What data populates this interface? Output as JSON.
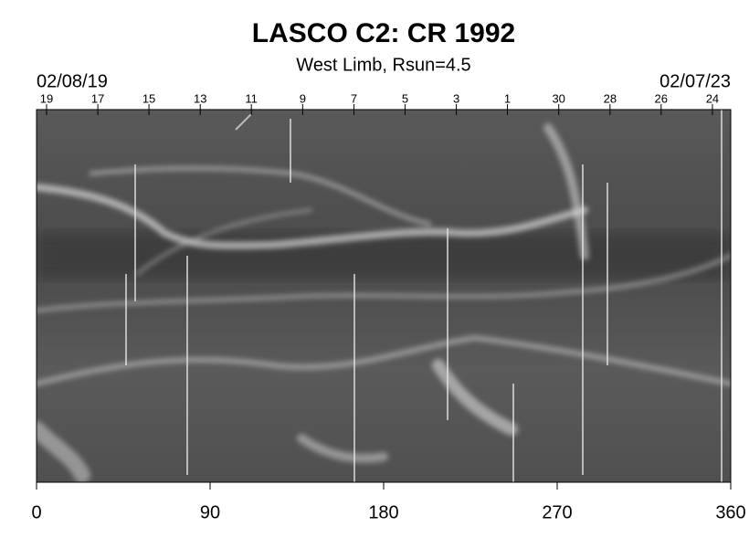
{
  "chart_data": {
    "type": "synoptic-map",
    "title": "LASCO C2: CR 1992",
    "subtitle": "West Limb, Rsun=4.5",
    "start_date": "02/08/19",
    "end_date": "02/07/23",
    "xlim": [
      0,
      360
    ],
    "xticks": [
      0,
      90,
      180,
      270,
      360
    ],
    "top_ticks": [
      {
        "value": 5.2,
        "label": "19"
      },
      {
        "value": 31.8,
        "label": "17"
      },
      {
        "value": 58.3,
        "label": "15"
      },
      {
        "value": 84.9,
        "label": "13"
      },
      {
        "value": 111.4,
        "label": "11"
      },
      {
        "value": 138.0,
        "label": "9"
      },
      {
        "value": 164.6,
        "label": "7"
      },
      {
        "value": 191.1,
        "label": "5"
      },
      {
        "value": 217.7,
        "label": "3"
      },
      {
        "value": 244.2,
        "label": "1"
      },
      {
        "value": 270.8,
        "label": "30"
      },
      {
        "value": 297.4,
        "label": "28"
      },
      {
        "value": 323.9,
        "label": "26"
      },
      {
        "value": 350.5,
        "label": "24"
      }
    ]
  }
}
